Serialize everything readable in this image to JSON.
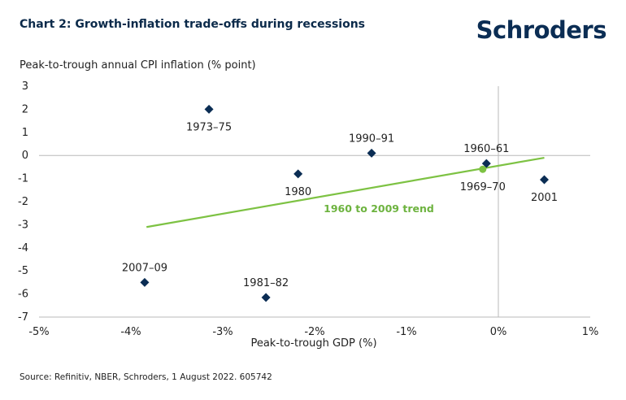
{
  "header": {
    "title": "Chart 2: Growth-inflation trade-offs during recessions",
    "brand": "Schroders"
  },
  "footer": {
    "source": "Source: Refinitiv, NBER, Schroders, 1 August 2022. 605742"
  },
  "colors": {
    "marker": "#0b2d54",
    "trend": "#7dc243",
    "trend_label": "#6db33f",
    "axis": "#b8b8b8"
  },
  "chart_data": {
    "type": "scatter",
    "xlabel": "Peak-to-trough GDP (%)",
    "ylabel": "Peak-to-trough annual CPI inflation (% point)",
    "xlim": [
      -5,
      1
    ],
    "ylim": [
      -7,
      3
    ],
    "x_ticks": [
      -5,
      -4,
      -3,
      -2,
      -1,
      0,
      1
    ],
    "x_tick_labels": [
      "-5%",
      "-4%",
      "-3%",
      "-2%",
      "-1%",
      "0%",
      "1%"
    ],
    "y_ticks": [
      3,
      2,
      1,
      0,
      -1,
      -2,
      -3,
      -4,
      -5,
      -6,
      -7
    ],
    "y_tick_labels": [
      "3",
      "2",
      "1",
      "0",
      "-1",
      "-2",
      "-3",
      "-4",
      "-5",
      "-6",
      "-7"
    ],
    "points": [
      {
        "label": "1973–75",
        "x": -3.15,
        "y": 2.0,
        "marker": "diamond",
        "label_pos": "below"
      },
      {
        "label": "1990–91",
        "x": -1.38,
        "y": 0.1,
        "marker": "diamond",
        "label_pos": "above"
      },
      {
        "label": "1980",
        "x": -2.18,
        "y": -0.8,
        "marker": "diamond",
        "label_pos": "below"
      },
      {
        "label": "1960–61",
        "x": -0.13,
        "y": -0.35,
        "marker": "diamond",
        "label_pos": "above"
      },
      {
        "label": "1969–70",
        "x": -0.17,
        "y": -0.6,
        "marker": "circle",
        "label_pos": "below"
      },
      {
        "label": "2001",
        "x": 0.5,
        "y": -1.05,
        "marker": "diamond",
        "label_pos": "below"
      },
      {
        "label": "2007–09",
        "x": -3.85,
        "y": -5.5,
        "marker": "diamond",
        "label_pos": "above"
      },
      {
        "label": "1981–82",
        "x": -2.53,
        "y": -6.15,
        "marker": "diamond",
        "label_pos": "above"
      }
    ],
    "trend": {
      "label": "1960 to 2009 trend",
      "x": [
        -3.83,
        0.5
      ],
      "y": [
        -3.1,
        -0.1
      ]
    }
  }
}
